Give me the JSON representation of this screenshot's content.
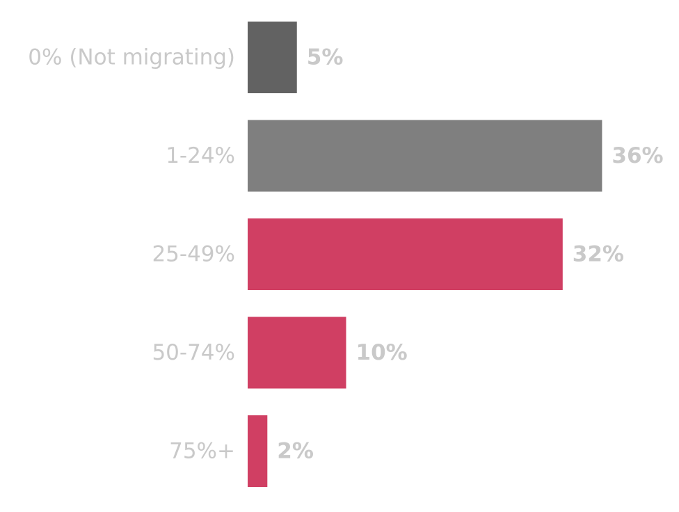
{
  "chart_data": {
    "type": "bar",
    "orientation": "horizontal",
    "categories": [
      "0% (Not migrating)",
      "1-24%",
      "25-49%",
      "50-74%",
      "75%+"
    ],
    "values": [
      5,
      36,
      32,
      10,
      2
    ],
    "value_labels": [
      "5%",
      "36%",
      "32%",
      "10%",
      "2%"
    ],
    "bar_colors": [
      "#626262",
      "#7f7f7f",
      "#d03f63",
      "#d03f63",
      "#d03f63"
    ],
    "label_color": "#c9c9c9",
    "xlim": [
      0,
      36
    ],
    "grid": false,
    "legend": "none",
    "title": "",
    "xlabel": "",
    "ylabel": ""
  }
}
